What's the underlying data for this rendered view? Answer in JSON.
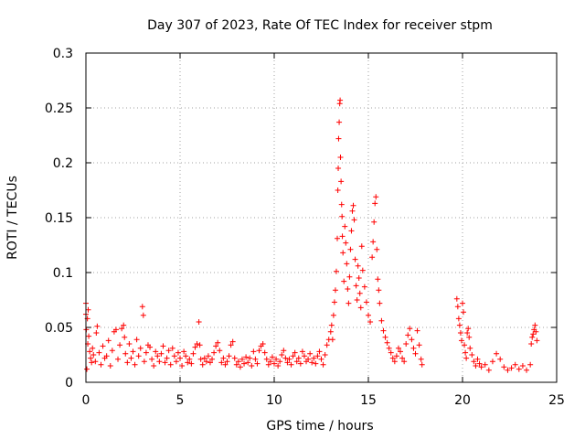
{
  "chart_data": {
    "type": "scatter",
    "title": "Day 307 of 2023, Rate Of TEC Index for receiver stpm",
    "xlabel": "GPS time / hours",
    "ylabel": "ROTI / TECUs",
    "xlim": [
      0,
      25
    ],
    "ylim": [
      0,
      0.3
    ],
    "x_ticks": [
      0,
      5,
      10,
      15,
      20,
      25
    ],
    "x_tick_labels": [
      "0",
      "5",
      "10",
      "15",
      "20",
      "25"
    ],
    "y_ticks": [
      0,
      0.05,
      0.1,
      0.15,
      0.2,
      0.25,
      0.3
    ],
    "y_tick_labels": [
      "0",
      "0.05",
      "0.1",
      "0.15",
      "0.2",
      "0.25",
      "0.3"
    ],
    "grid": true,
    "marker": "+",
    "color": "#ff0000",
    "series": [
      {
        "name": "ROTI",
        "points": [
          [
            0.0,
            0.072
          ],
          [
            0.0,
            0.062
          ],
          [
            0.02,
            0.048
          ],
          [
            0.05,
            0.012
          ],
          [
            0.08,
            0.058
          ],
          [
            0.1,
            0.035
          ],
          [
            0.12,
            0.066
          ],
          [
            0.15,
            0.042
          ],
          [
            0.2,
            0.028
          ],
          [
            0.25,
            0.022
          ],
          [
            0.3,
            0.018
          ],
          [
            0.35,
            0.031
          ],
          [
            0.4,
            0.025
          ],
          [
            0.5,
            0.019
          ],
          [
            0.55,
            0.045
          ],
          [
            0.6,
            0.051
          ],
          [
            0.7,
            0.027
          ],
          [
            0.8,
            0.016
          ],
          [
            0.9,
            0.033
          ],
          [
            1.0,
            0.022
          ],
          [
            1.1,
            0.024
          ],
          [
            1.2,
            0.038
          ],
          [
            1.3,
            0.015
          ],
          [
            1.4,
            0.029
          ],
          [
            1.5,
            0.046
          ],
          [
            1.6,
            0.048
          ],
          [
            1.7,
            0.021
          ],
          [
            1.8,
            0.034
          ],
          [
            1.9,
            0.049
          ],
          [
            2.0,
            0.052
          ],
          [
            2.05,
            0.041
          ],
          [
            2.1,
            0.026
          ],
          [
            2.2,
            0.018
          ],
          [
            2.3,
            0.035
          ],
          [
            2.4,
            0.022
          ],
          [
            2.5,
            0.028
          ],
          [
            2.6,
            0.016
          ],
          [
            2.7,
            0.039
          ],
          [
            2.8,
            0.024
          ],
          [
            2.9,
            0.031
          ],
          [
            3.0,
            0.069
          ],
          [
            3.05,
            0.061
          ],
          [
            3.1,
            0.019
          ],
          [
            3.2,
            0.027
          ],
          [
            3.3,
            0.034
          ],
          [
            3.4,
            0.032
          ],
          [
            3.5,
            0.021
          ],
          [
            3.6,
            0.015
          ],
          [
            3.7,
            0.028
          ],
          [
            3.8,
            0.024
          ],
          [
            3.9,
            0.019
          ],
          [
            4.0,
            0.026
          ],
          [
            4.1,
            0.033
          ],
          [
            4.2,
            0.018
          ],
          [
            4.3,
            0.022
          ],
          [
            4.4,
            0.029
          ],
          [
            4.5,
            0.016
          ],
          [
            4.6,
            0.031
          ],
          [
            4.7,
            0.024
          ],
          [
            4.8,
            0.019
          ],
          [
            4.9,
            0.027
          ],
          [
            5.0,
            0.022
          ],
          [
            5.1,
            0.015
          ],
          [
            5.2,
            0.028
          ],
          [
            5.3,
            0.024
          ],
          [
            5.4,
            0.018
          ],
          [
            5.5,
            0.021
          ],
          [
            5.6,
            0.017
          ],
          [
            5.7,
            0.026
          ],
          [
            5.8,
            0.032
          ],
          [
            5.9,
            0.035
          ],
          [
            6.0,
            0.055
          ],
          [
            6.05,
            0.034
          ],
          [
            6.1,
            0.021
          ],
          [
            6.2,
            0.016
          ],
          [
            6.3,
            0.022
          ],
          [
            6.4,
            0.019
          ],
          [
            6.5,
            0.024
          ],
          [
            6.6,
            0.018
          ],
          [
            6.7,
            0.021
          ],
          [
            6.8,
            0.027
          ],
          [
            6.9,
            0.033
          ],
          [
            7.0,
            0.036
          ],
          [
            7.1,
            0.029
          ],
          [
            7.2,
            0.018
          ],
          [
            7.3,
            0.022
          ],
          [
            7.4,
            0.016
          ],
          [
            7.5,
            0.019
          ],
          [
            7.6,
            0.024
          ],
          [
            7.7,
            0.034
          ],
          [
            7.8,
            0.037
          ],
          [
            7.9,
            0.022
          ],
          [
            8.0,
            0.016
          ],
          [
            8.1,
            0.019
          ],
          [
            8.2,
            0.014
          ],
          [
            8.3,
            0.021
          ],
          [
            8.4,
            0.017
          ],
          [
            8.5,
            0.023
          ],
          [
            8.6,
            0.018
          ],
          [
            8.7,
            0.022
          ],
          [
            8.8,
            0.015
          ],
          [
            8.9,
            0.028
          ],
          [
            9.0,
            0.021
          ],
          [
            9.1,
            0.017
          ],
          [
            9.2,
            0.029
          ],
          [
            9.3,
            0.033
          ],
          [
            9.4,
            0.035
          ],
          [
            9.5,
            0.027
          ],
          [
            9.6,
            0.021
          ],
          [
            9.7,
            0.016
          ],
          [
            9.8,
            0.019
          ],
          [
            9.9,
            0.023
          ],
          [
            10.0,
            0.017
          ],
          [
            10.1,
            0.021
          ],
          [
            10.2,
            0.015
          ],
          [
            10.3,
            0.019
          ],
          [
            10.4,
            0.025
          ],
          [
            10.5,
            0.029
          ],
          [
            10.6,
            0.022
          ],
          [
            10.7,
            0.018
          ],
          [
            10.8,
            0.021
          ],
          [
            10.9,
            0.016
          ],
          [
            11.0,
            0.024
          ],
          [
            11.1,
            0.027
          ],
          [
            11.2,
            0.019
          ],
          [
            11.3,
            0.022
          ],
          [
            11.4,
            0.017
          ],
          [
            11.5,
            0.028
          ],
          [
            11.6,
            0.024
          ],
          [
            11.7,
            0.019
          ],
          [
            11.8,
            0.021
          ],
          [
            11.9,
            0.026
          ],
          [
            12.0,
            0.018
          ],
          [
            12.1,
            0.022
          ],
          [
            12.2,
            0.017
          ],
          [
            12.3,
            0.024
          ],
          [
            12.4,
            0.028
          ],
          [
            12.5,
            0.021
          ],
          [
            12.6,
            0.016
          ],
          [
            12.7,
            0.025
          ],
          [
            12.8,
            0.034
          ],
          [
            12.9,
            0.039
          ],
          [
            13.0,
            0.046
          ],
          [
            13.05,
            0.052
          ],
          [
            13.1,
            0.039
          ],
          [
            13.15,
            0.061
          ],
          [
            13.2,
            0.073
          ],
          [
            13.25,
            0.084
          ],
          [
            13.3,
            0.101
          ],
          [
            13.35,
            0.131
          ],
          [
            13.38,
            0.175
          ],
          [
            13.4,
            0.195
          ],
          [
            13.42,
            0.222
          ],
          [
            13.45,
            0.237
          ],
          [
            13.48,
            0.254
          ],
          [
            13.5,
            0.257
          ],
          [
            13.52,
            0.205
          ],
          [
            13.55,
            0.183
          ],
          [
            13.58,
            0.162
          ],
          [
            13.6,
            0.151
          ],
          [
            13.62,
            0.133
          ],
          [
            13.65,
            0.118
          ],
          [
            13.7,
            0.092
          ],
          [
            13.75,
            0.142
          ],
          [
            13.8,
            0.127
          ],
          [
            13.85,
            0.108
          ],
          [
            13.9,
            0.085
          ],
          [
            13.95,
            0.072
          ],
          [
            14.0,
            0.096
          ],
          [
            14.05,
            0.121
          ],
          [
            14.1,
            0.138
          ],
          [
            14.15,
            0.156
          ],
          [
            14.2,
            0.161
          ],
          [
            14.25,
            0.148
          ],
          [
            14.3,
            0.112
          ],
          [
            14.35,
            0.088
          ],
          [
            14.4,
            0.075
          ],
          [
            14.45,
            0.106
          ],
          [
            14.5,
            0.095
          ],
          [
            14.55,
            0.081
          ],
          [
            14.6,
            0.068
          ],
          [
            14.65,
            0.124
          ],
          [
            14.7,
            0.102
          ],
          [
            14.8,
            0.087
          ],
          [
            14.9,
            0.073
          ],
          [
            15.0,
            0.061
          ],
          [
            15.1,
            0.055
          ],
          [
            15.2,
            0.114
          ],
          [
            15.25,
            0.128
          ],
          [
            15.3,
            0.146
          ],
          [
            15.35,
            0.163
          ],
          [
            15.4,
            0.169
          ],
          [
            15.45,
            0.121
          ],
          [
            15.5,
            0.094
          ],
          [
            15.55,
            0.084
          ],
          [
            15.6,
            0.072
          ],
          [
            15.7,
            0.056
          ],
          [
            15.8,
            0.047
          ],
          [
            15.9,
            0.041
          ],
          [
            16.0,
            0.036
          ],
          [
            16.1,
            0.031
          ],
          [
            16.2,
            0.027
          ],
          [
            16.3,
            0.022
          ],
          [
            16.4,
            0.019
          ],
          [
            16.5,
            0.024
          ],
          [
            16.6,
            0.031
          ],
          [
            16.7,
            0.028
          ],
          [
            16.8,
            0.022
          ],
          [
            16.9,
            0.019
          ],
          [
            17.0,
            0.035
          ],
          [
            17.1,
            0.043
          ],
          [
            17.2,
            0.049
          ],
          [
            17.3,
            0.039
          ],
          [
            17.4,
            0.031
          ],
          [
            17.5,
            0.026
          ],
          [
            17.6,
            0.047
          ],
          [
            17.7,
            0.034
          ],
          [
            17.8,
            0.021
          ],
          [
            17.85,
            0.016
          ],
          [
            19.7,
            0.076
          ],
          [
            19.75,
            0.069
          ],
          [
            19.8,
            0.058
          ],
          [
            19.85,
            0.052
          ],
          [
            19.9,
            0.045
          ],
          [
            19.95,
            0.038
          ],
          [
            20.0,
            0.072
          ],
          [
            20.05,
            0.064
          ],
          [
            20.1,
            0.034
          ],
          [
            20.15,
            0.027
          ],
          [
            20.2,
            0.022
          ],
          [
            20.25,
            0.045
          ],
          [
            20.3,
            0.049
          ],
          [
            20.35,
            0.041
          ],
          [
            20.4,
            0.031
          ],
          [
            20.5,
            0.025
          ],
          [
            20.6,
            0.019
          ],
          [
            20.7,
            0.015
          ],
          [
            20.8,
            0.021
          ],
          [
            20.9,
            0.017
          ],
          [
            21.0,
            0.014
          ],
          [
            21.2,
            0.016
          ],
          [
            21.4,
            0.011
          ],
          [
            21.6,
            0.019
          ],
          [
            21.8,
            0.026
          ],
          [
            22.0,
            0.021
          ],
          [
            22.2,
            0.014
          ],
          [
            22.4,
            0.011
          ],
          [
            22.6,
            0.013
          ],
          [
            22.8,
            0.016
          ],
          [
            23.0,
            0.012
          ],
          [
            23.2,
            0.015
          ],
          [
            23.4,
            0.011
          ],
          [
            23.6,
            0.016
          ],
          [
            23.65,
            0.035
          ],
          [
            23.7,
            0.041
          ],
          [
            23.75,
            0.044
          ],
          [
            23.8,
            0.048
          ],
          [
            23.85,
            0.052
          ],
          [
            23.9,
            0.046
          ],
          [
            23.95,
            0.038
          ]
        ]
      }
    ]
  }
}
